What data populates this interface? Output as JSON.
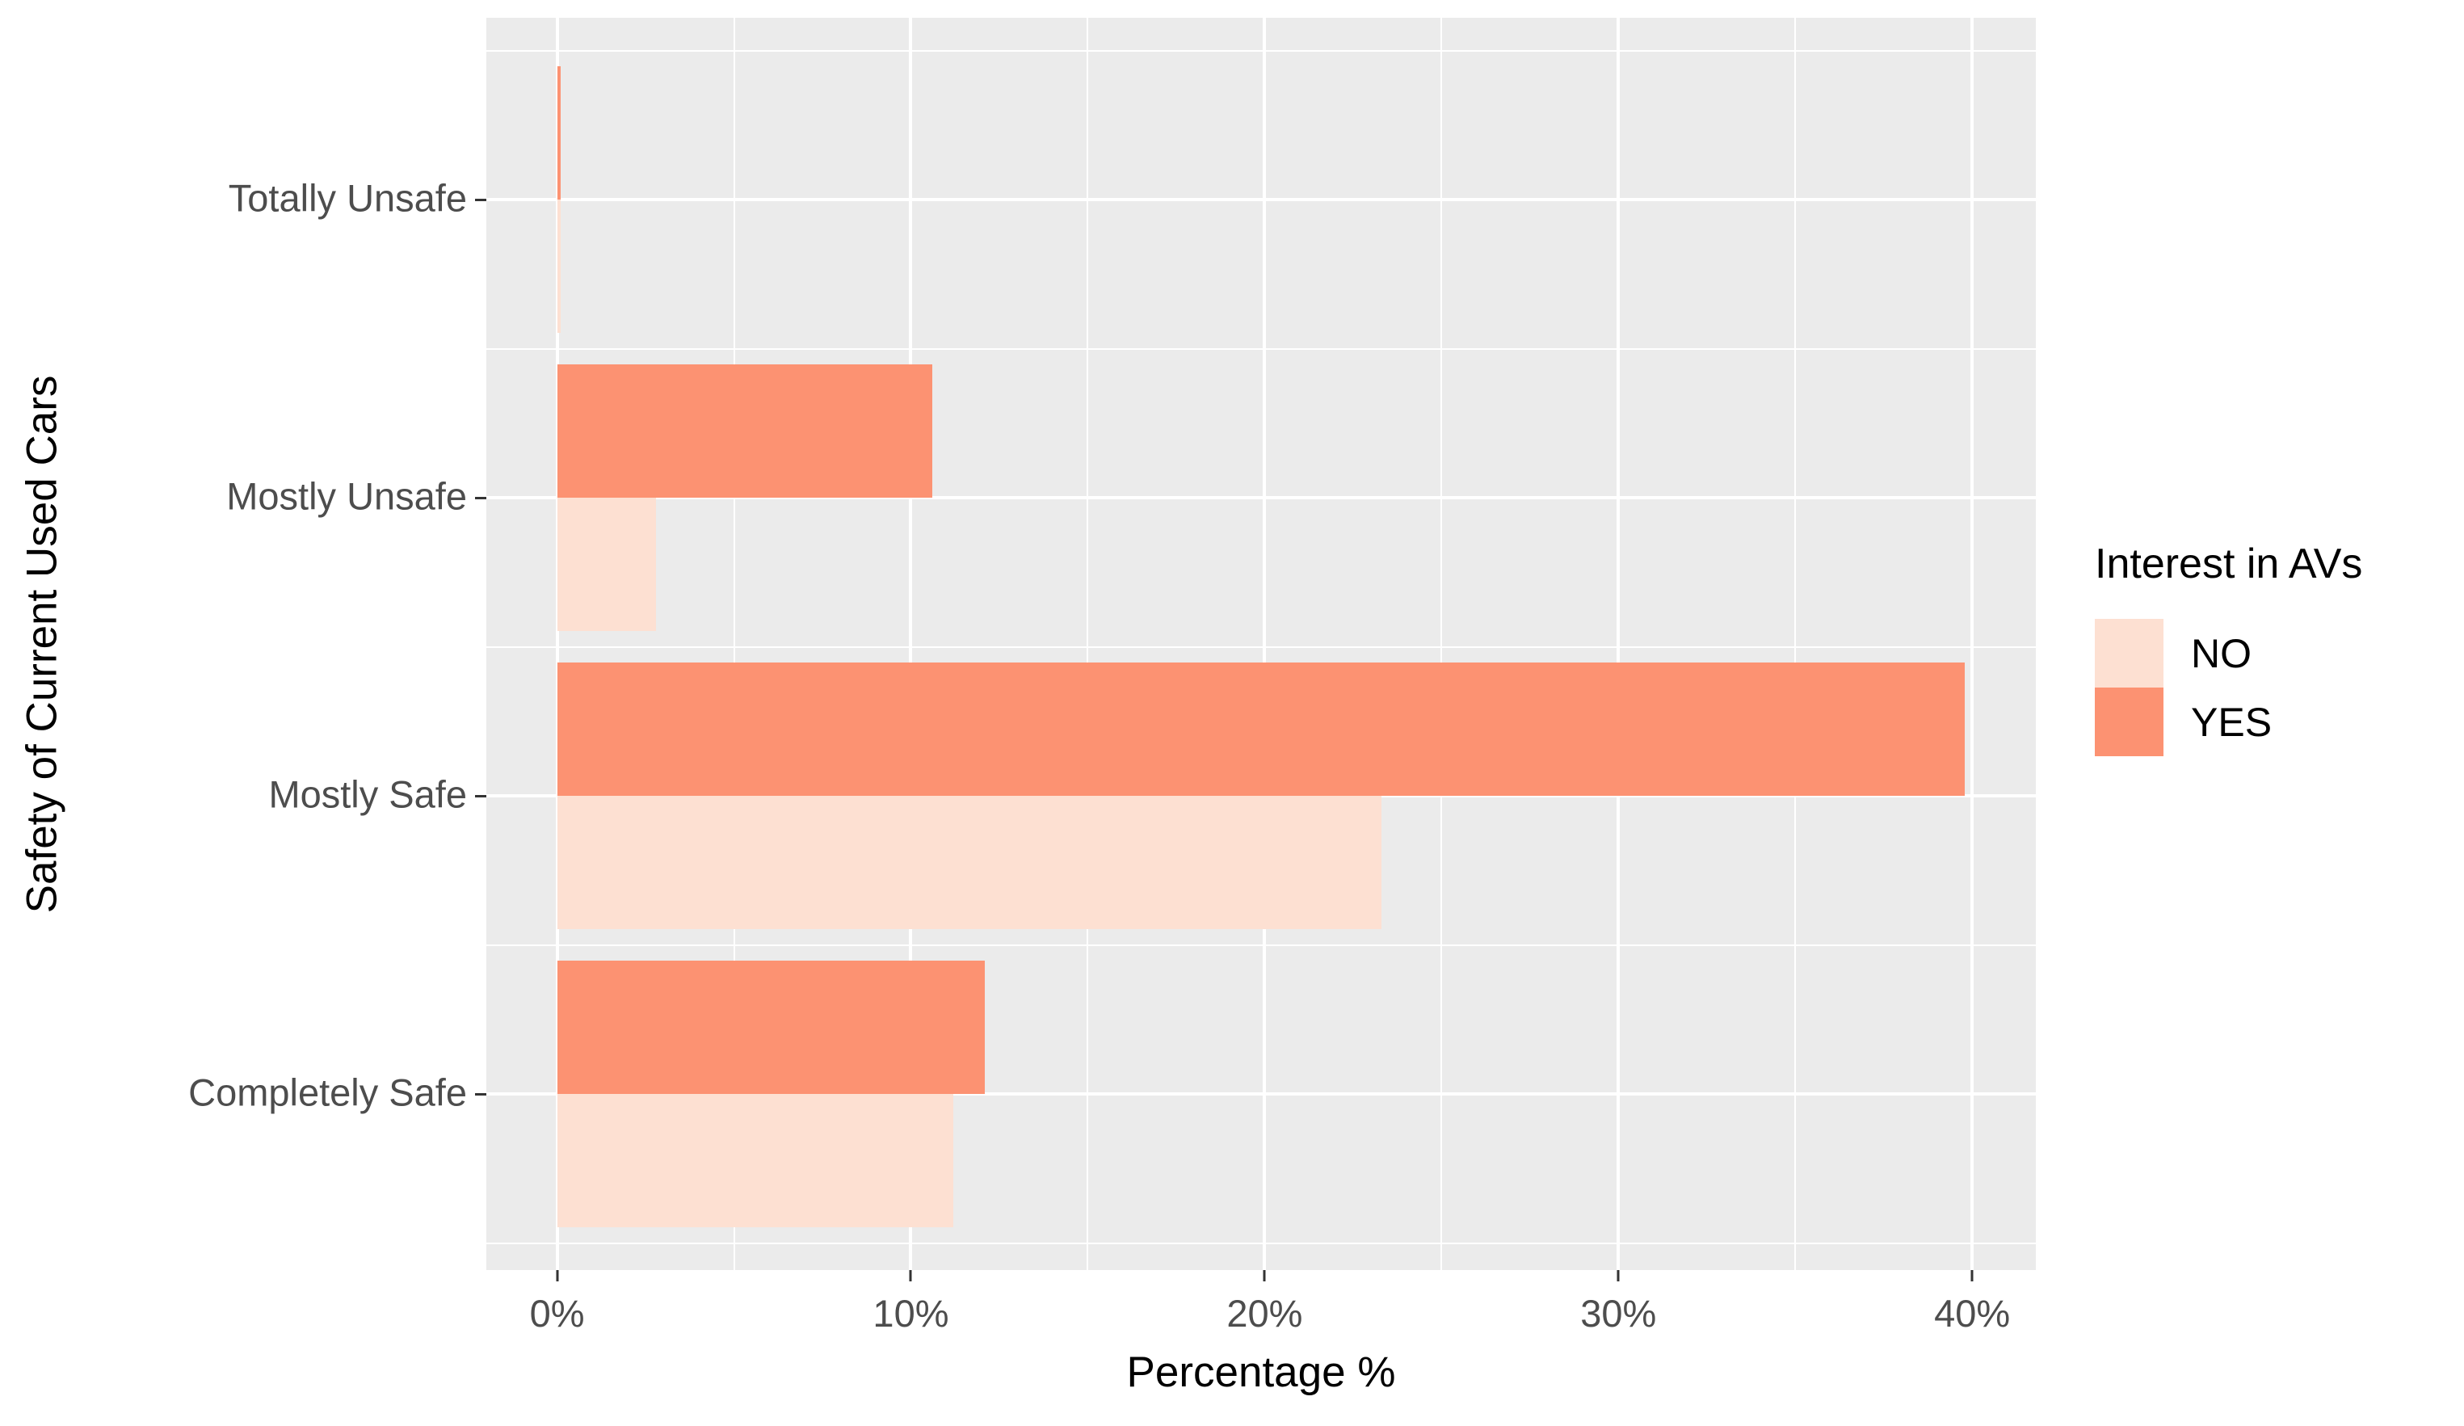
{
  "chart_data": {
    "type": "bar",
    "orientation": "horizontal",
    "title": "",
    "xlabel": "Percentage %",
    "ylabel": "Safety of Current Used Cars",
    "categories": [
      "Totally Unsafe",
      "Mostly Unsafe",
      "Mostly Safe",
      "Completely Safe"
    ],
    "series": [
      {
        "name": "NO",
        "color": "#FDE0D2",
        "values": [
          0.1,
          2.8,
          23.3,
          11.2
        ]
      },
      {
        "name": "YES",
        "color": "#FC9272",
        "values": [
          0.1,
          10.6,
          39.8,
          12.1
        ]
      }
    ],
    "dodge_order_top_to_bottom": [
      "YES",
      "NO"
    ],
    "legend": {
      "title": "Interest in AVs",
      "entries": [
        "NO",
        "YES"
      ],
      "position": "right"
    },
    "x_ticks": [
      "0%",
      "10%",
      "20%",
      "30%",
      "40%"
    ],
    "x_tick_values": [
      0,
      10,
      20,
      30,
      40
    ],
    "x_minor_values": [
      5,
      15,
      25,
      35
    ],
    "xlim": [
      -2,
      41.8
    ],
    "grid": true,
    "colors": {
      "panel_bg": "#EBEBEB",
      "grid": "#FFFFFF",
      "axis_text": "#4D4D4D",
      "axis_title": "#000000",
      "tick_mark": "#333333"
    }
  }
}
